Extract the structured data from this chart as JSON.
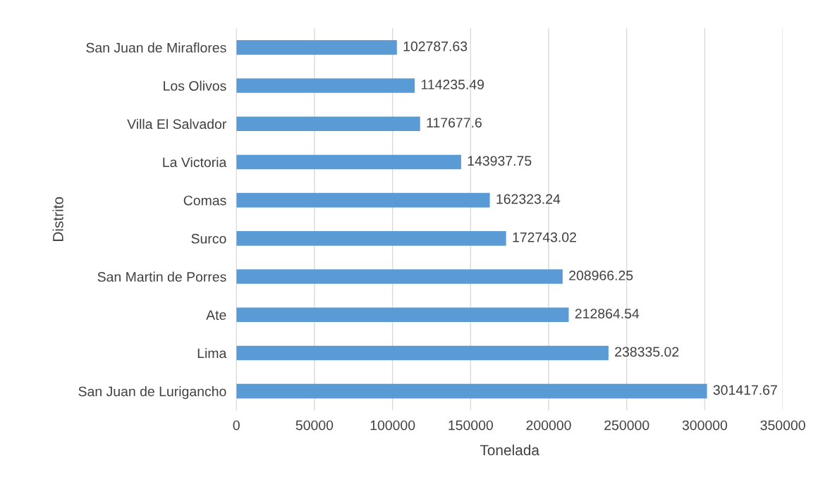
{
  "chart_data": {
    "type": "bar",
    "orientation": "horizontal",
    "xlabel": "Tonelada",
    "ylabel": "Distrito",
    "categories": [
      "San Juan de Miraflores",
      "Los Olivos",
      "Villa El Salvador",
      "La Victoria",
      "Comas",
      "Surco",
      "San Martin de Porres",
      "Ate",
      "Lima",
      "San Juan de Lurigancho"
    ],
    "values": [
      102787.63,
      114235.49,
      117677.6,
      143937.75,
      162323.24,
      172743.02,
      208966.25,
      212864.54,
      238335.02,
      301417.67
    ],
    "color": "#5b9bd5",
    "xlim": [
      0,
      350000
    ],
    "xticks": [
      0,
      50000,
      100000,
      150000,
      200000,
      250000,
      300000,
      350000
    ],
    "grid": "x",
    "data_labels": true
  }
}
